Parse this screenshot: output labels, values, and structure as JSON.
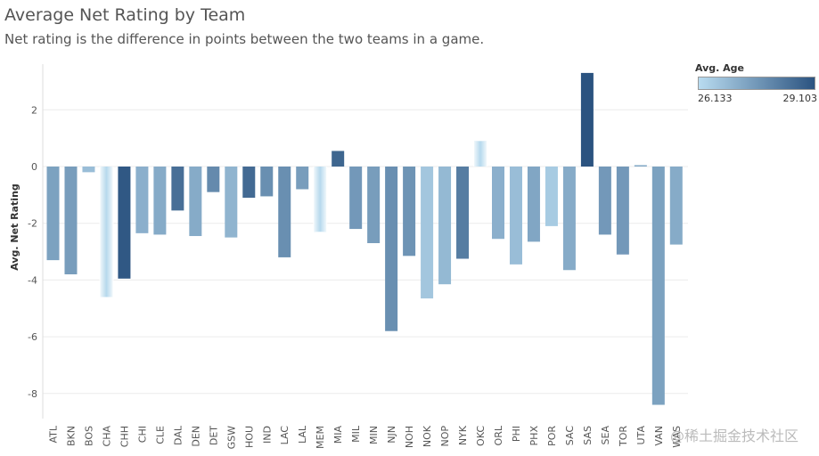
{
  "chart_data": {
    "type": "bar",
    "title": "Average Net Rating by Team",
    "subtitle": "Net rating is the difference in points between the two teams in a game.",
    "ylabel": "Avg. Net Rating",
    "xlabel": "",
    "ylim": [
      -9,
      3.5
    ],
    "yticks": [
      2,
      0,
      -2,
      -4,
      -6,
      -8
    ],
    "grid": true,
    "categories": [
      "ATL",
      "BKN",
      "BOS",
      "CHA",
      "CHH",
      "CHI",
      "CLE",
      "DAL",
      "DEN",
      "DET",
      "GSW",
      "HOU",
      "IND",
      "LAC",
      "LAL",
      "MEM",
      "MIA",
      "MIL",
      "MIN",
      "NJN",
      "NOH",
      "NOK",
      "NOP",
      "NYK",
      "OKC",
      "ORL",
      "PHI",
      "PHX",
      "POR",
      "SAC",
      "SAS",
      "SEA",
      "TOR",
      "UTA",
      "VAN",
      "WAS"
    ],
    "values": [
      -3.3,
      -3.8,
      -0.2,
      -4.6,
      -3.95,
      -2.35,
      -2.4,
      -1.55,
      -2.45,
      -0.9,
      -2.5,
      -1.1,
      -1.05,
      -3.2,
      -0.8,
      -2.3,
      0.55,
      -2.2,
      -2.7,
      -5.8,
      -3.15,
      -4.65,
      -4.15,
      -3.25,
      0.9,
      -2.55,
      -3.45,
      -2.65,
      -2.1,
      -3.65,
      3.3,
      -2.4,
      -3.1,
      0.05,
      -8.4,
      -2.75
    ],
    "color_values": [
      27.4,
      27.5,
      26.8,
      26.2,
      29.0,
      27.1,
      27.2,
      28.5,
      27.2,
      27.9,
      27.0,
      28.6,
      27.8,
      27.8,
      27.5,
      26.2,
      28.7,
      27.6,
      27.5,
      27.8,
      27.7,
      26.6,
      26.9,
      28.2,
      26.2,
      27.1,
      26.8,
      27.3,
      26.5,
      27.2,
      29.1,
      27.6,
      27.6,
      27.2,
      27.4,
      27.2
    ],
    "fade_categories": [
      "CHA",
      "MEM",
      "OKC"
    ],
    "legend": {
      "title": "Avg. Age",
      "min_label": "26.133",
      "max_label": "29.103",
      "min": 26.133,
      "max": 29.103,
      "color_low": "#b9dcf0",
      "color_high": "#2b5380",
      "placement": "top-right"
    }
  },
  "watermark": "@稀土掘金技术社区"
}
